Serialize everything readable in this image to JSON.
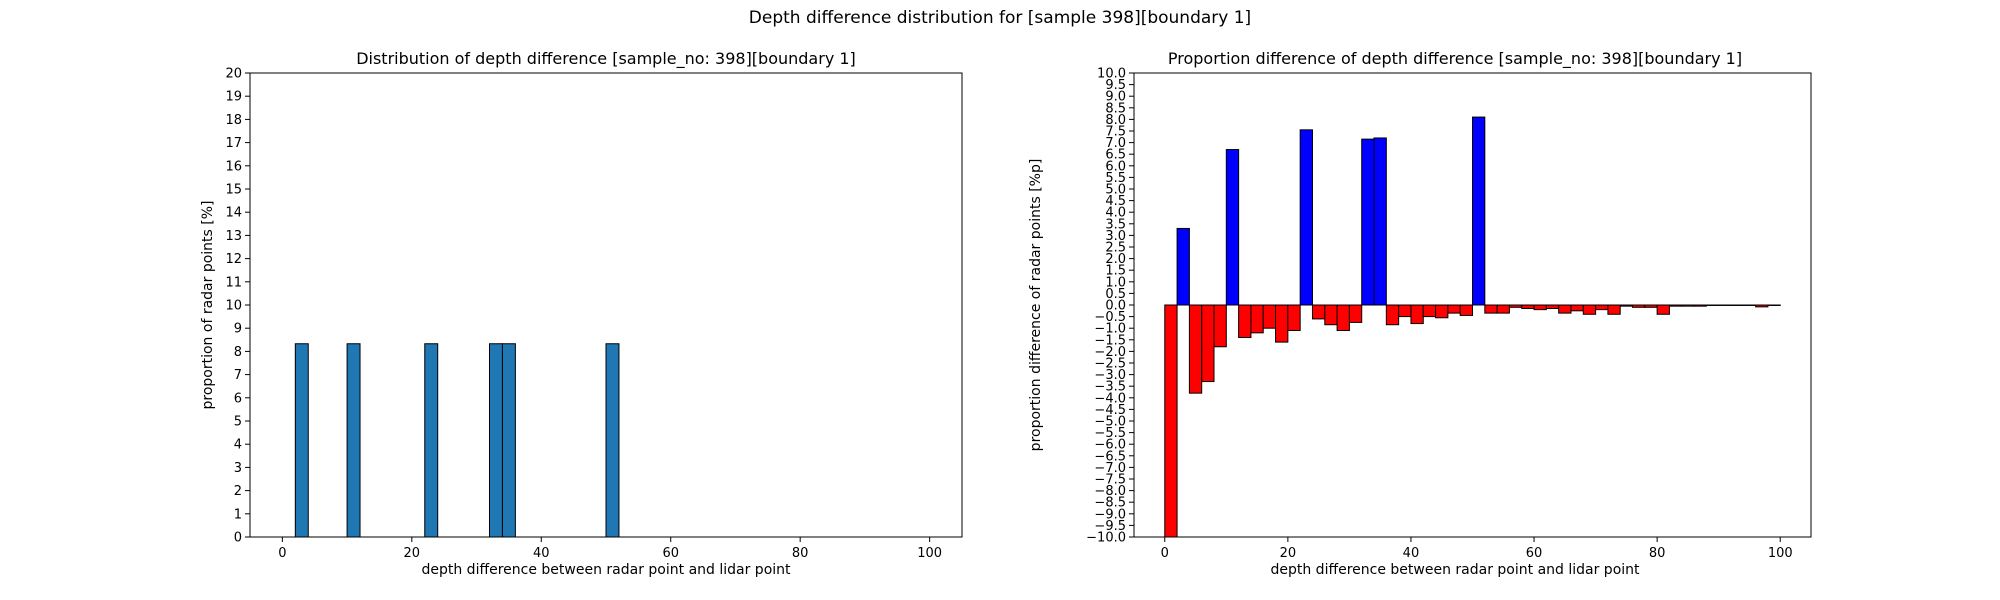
{
  "figure": {
    "suptitle": "Depth difference distribution for [sample 398][boundary 1]"
  },
  "chart_data": [
    {
      "type": "bar",
      "title": "Distribution of depth difference [sample_no: 398][boundary 1]",
      "xlabel": "depth difference between radar point and lidar point",
      "ylabel": "proportion of radar points [%]",
      "xlim": [
        -5,
        105
      ],
      "ylim": [
        0,
        20
      ],
      "xticks": [
        0,
        20,
        40,
        60,
        80,
        100
      ],
      "yticks": [
        0,
        1,
        2,
        3,
        4,
        5,
        6,
        7,
        8,
        9,
        10,
        11,
        12,
        13,
        14,
        15,
        16,
        17,
        18,
        19,
        20
      ],
      "bin_width": 2,
      "bars": [
        {
          "x": 2,
          "value": 8.33
        },
        {
          "x": 10,
          "value": 8.33
        },
        {
          "x": 22,
          "value": 8.33
        },
        {
          "x": 32,
          "value": 8.33
        },
        {
          "x": 34,
          "value": 8.33
        },
        {
          "x": 50,
          "value": 8.33
        }
      ],
      "colors": {
        "bar": "#1f77b4",
        "edge": "#000000"
      },
      "grid": false,
      "legend": "none"
    },
    {
      "type": "bar",
      "title": "Proportion difference of depth difference [sample_no: 398][boundary 1]",
      "xlabel": "depth difference between radar point and lidar point",
      "ylabel": "proportion difference of radar points [%p]",
      "xlim": [
        -5,
        105
      ],
      "ylim": [
        -10,
        10
      ],
      "xticks": [
        0,
        20,
        40,
        60,
        80,
        100
      ],
      "yticks": [
        -10.0,
        -9.5,
        -9.0,
        -8.5,
        -8.0,
        -7.5,
        -7.0,
        -6.5,
        -6.0,
        -5.5,
        -5.0,
        -4.5,
        -4.0,
        -3.5,
        -3.0,
        -2.5,
        -2.0,
        -1.5,
        -1.0,
        -0.5,
        0.0,
        0.5,
        1.0,
        1.5,
        2.0,
        2.5,
        3.0,
        3.5,
        4.0,
        4.5,
        5.0,
        5.5,
        6.0,
        6.5,
        7.0,
        7.5,
        8.0,
        8.5,
        9.0,
        9.5,
        10.0
      ],
      "bin_width": 2,
      "bars": [
        {
          "x": 0,
          "value": -10.0
        },
        {
          "x": 2,
          "value": 3.3
        },
        {
          "x": 4,
          "value": -3.8
        },
        {
          "x": 6,
          "value": -3.3
        },
        {
          "x": 8,
          "value": -1.8
        },
        {
          "x": 10,
          "value": 6.7
        },
        {
          "x": 12,
          "value": -1.4
        },
        {
          "x": 14,
          "value": -1.2
        },
        {
          "x": 16,
          "value": -1.0
        },
        {
          "x": 18,
          "value": -1.6
        },
        {
          "x": 20,
          "value": -1.1
        },
        {
          "x": 22,
          "value": 7.55
        },
        {
          "x": 24,
          "value": -0.6
        },
        {
          "x": 26,
          "value": -0.85
        },
        {
          "x": 28,
          "value": -1.1
        },
        {
          "x": 30,
          "value": -0.75
        },
        {
          "x": 32,
          "value": 7.15
        },
        {
          "x": 34,
          "value": 7.2
        },
        {
          "x": 36,
          "value": -0.85
        },
        {
          "x": 38,
          "value": -0.5
        },
        {
          "x": 40,
          "value": -0.8
        },
        {
          "x": 42,
          "value": -0.5
        },
        {
          "x": 44,
          "value": -0.55
        },
        {
          "x": 46,
          "value": -0.35
        },
        {
          "x": 48,
          "value": -0.45
        },
        {
          "x": 50,
          "value": 8.1
        },
        {
          "x": 52,
          "value": -0.35
        },
        {
          "x": 54,
          "value": -0.35
        },
        {
          "x": 56,
          "value": -0.1
        },
        {
          "x": 58,
          "value": -0.15
        },
        {
          "x": 60,
          "value": -0.2
        },
        {
          "x": 62,
          "value": -0.15
        },
        {
          "x": 64,
          "value": -0.35
        },
        {
          "x": 66,
          "value": -0.25
        },
        {
          "x": 68,
          "value": -0.4
        },
        {
          "x": 70,
          "value": -0.2
        },
        {
          "x": 72,
          "value": -0.4
        },
        {
          "x": 74,
          "value": -0.05
        },
        {
          "x": 76,
          "value": -0.1
        },
        {
          "x": 78,
          "value": -0.1
        },
        {
          "x": 80,
          "value": -0.4
        },
        {
          "x": 82,
          "value": -0.05
        },
        {
          "x": 84,
          "value": -0.05
        },
        {
          "x": 86,
          "value": -0.05
        },
        {
          "x": 88,
          "value": -0.02
        },
        {
          "x": 90,
          "value": -0.02
        },
        {
          "x": 92,
          "value": -0.02
        },
        {
          "x": 94,
          "value": -0.02
        },
        {
          "x": 96,
          "value": -0.08
        },
        {
          "x": 98,
          "value": -0.02
        }
      ],
      "colors": {
        "positive": "#0000ff",
        "negative": "#ff0000",
        "edge": "#000000"
      },
      "grid": false,
      "legend": "none"
    }
  ]
}
